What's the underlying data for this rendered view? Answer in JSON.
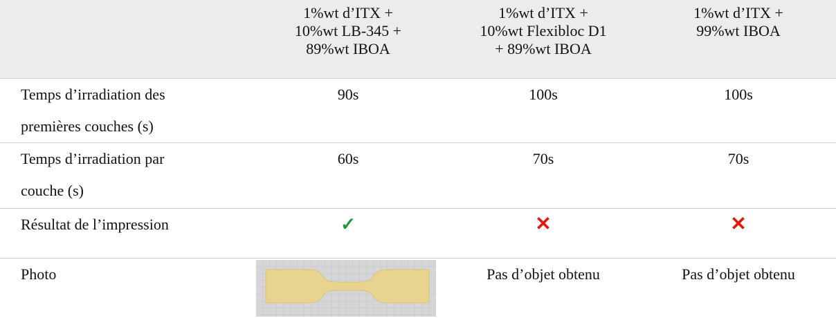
{
  "table": {
    "header": [
      [
        "1%wt d’ITX +",
        "10%wt  LB-345 +",
        "89%wt IBOA"
      ],
      [
        "1%wt d’ITX +",
        "10%wt  Flexibloc D1",
        "+ 89%wt IBOA"
      ],
      [
        "1%wt d’ITX +",
        "99%wt IBOA"
      ]
    ],
    "rows": [
      {
        "label": [
          "Temps d’irradiation des",
          "premières couches (s)"
        ],
        "cells": [
          "90s",
          "100s",
          "100s"
        ]
      },
      {
        "label": [
          "Temps d’irradiation par",
          "couche (s)"
        ],
        "cells": [
          "60s",
          "70s",
          "70s"
        ]
      },
      {
        "label": [
          "Résultat de l’impression"
        ],
        "cells": [
          "✓",
          "✕",
          "✕"
        ]
      },
      {
        "label": [
          "Photo"
        ],
        "cells": [
          "Pas d’objet obtenu",
          "Pas d’objet obtenu"
        ]
      }
    ]
  }
}
